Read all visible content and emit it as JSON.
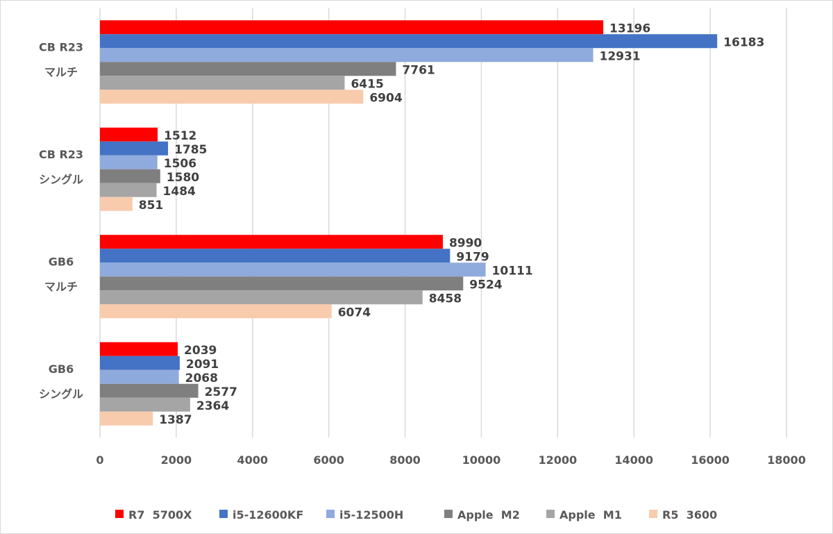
{
  "chart_data": {
    "type": "bar",
    "orientation": "horizontal",
    "title": "",
    "xlabel": "",
    "ylabel": "",
    "xlim": [
      0,
      18000
    ],
    "xticks": [
      0,
      2000,
      4000,
      6000,
      8000,
      10000,
      12000,
      14000,
      16000,
      18000
    ],
    "grid": true,
    "legend_position": "bottom",
    "categories": [
      {
        "line1": "CB  R23",
        "line2": "マルチ"
      },
      {
        "line1": "CB  R23",
        "line2": "シングル"
      },
      {
        "line1": "GB6",
        "line2": "マルチ"
      },
      {
        "line1": "GB6",
        "line2": "シングル"
      }
    ],
    "series": [
      {
        "name": "R7  5700X",
        "color": "#ff0000",
        "values": [
          13196,
          1512,
          8990,
          2039
        ]
      },
      {
        "name": "i5-12600KF",
        "color": "#4472c4",
        "values": [
          16183,
          1785,
          9179,
          2091
        ]
      },
      {
        "name": "i5-12500H",
        "color": "#8faadc",
        "values": [
          12931,
          1506,
          10111,
          2068
        ]
      },
      {
        "name": "Apple  M2",
        "color": "#7f7f7f",
        "values": [
          7761,
          1580,
          9524,
          2577
        ]
      },
      {
        "name": "Apple  M1",
        "color": "#a5a5a5",
        "values": [
          6415,
          1484,
          8458,
          2364
        ]
      },
      {
        "name": "R5  3600",
        "color": "#f8cbad",
        "values": [
          6904,
          851,
          6074,
          1387
        ]
      }
    ]
  }
}
